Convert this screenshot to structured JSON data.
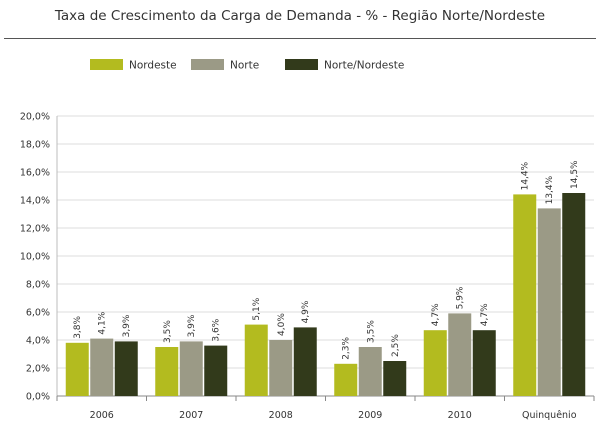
{
  "chart_data": {
    "type": "bar",
    "title": "Taxa de Crescimento da Carga de Demanda - % - Região Norte/Nordeste",
    "categories": [
      "2006",
      "2007",
      "2008",
      "2009",
      "2010",
      "Quinquênio"
    ],
    "series": [
      {
        "name": "Nordeste",
        "color": "#b3bb1f",
        "values": [
          3.8,
          3.5,
          5.1,
          2.3,
          4.7,
          14.4
        ],
        "labels": [
          "3,8%",
          "3,5%",
          "5,1%",
          "2,3%",
          "4,7%",
          "14,4%"
        ]
      },
      {
        "name": "Norte",
        "color": "#9b9a86",
        "values": [
          4.1,
          3.9,
          4.0,
          3.5,
          5.9,
          13.4
        ],
        "labels": [
          "4,1%",
          "3,9%",
          "4,0%",
          "3,5%",
          "5,9%",
          "13,4%"
        ]
      },
      {
        "name": "Norte/Nordeste",
        "color": "#323a1b",
        "values": [
          3.9,
          3.6,
          4.9,
          2.5,
          4.7,
          14.5
        ],
        "labels": [
          "3,9%",
          "3,6%",
          "4,9%",
          "2,5%",
          "4,7%",
          "14,5%"
        ]
      }
    ],
    "ylim": [
      0,
      20
    ],
    "yticks": [
      0,
      2,
      4,
      6,
      8,
      10,
      12,
      14,
      16,
      18,
      20
    ],
    "ytick_labels": [
      "0,0%",
      "2,0%",
      "4,0%",
      "6,0%",
      "8,0%",
      "10,0%",
      "12,0%",
      "14,0%",
      "16,0%",
      "18,0%",
      "20,0%"
    ],
    "grid": true,
    "legend_position": "top"
  }
}
